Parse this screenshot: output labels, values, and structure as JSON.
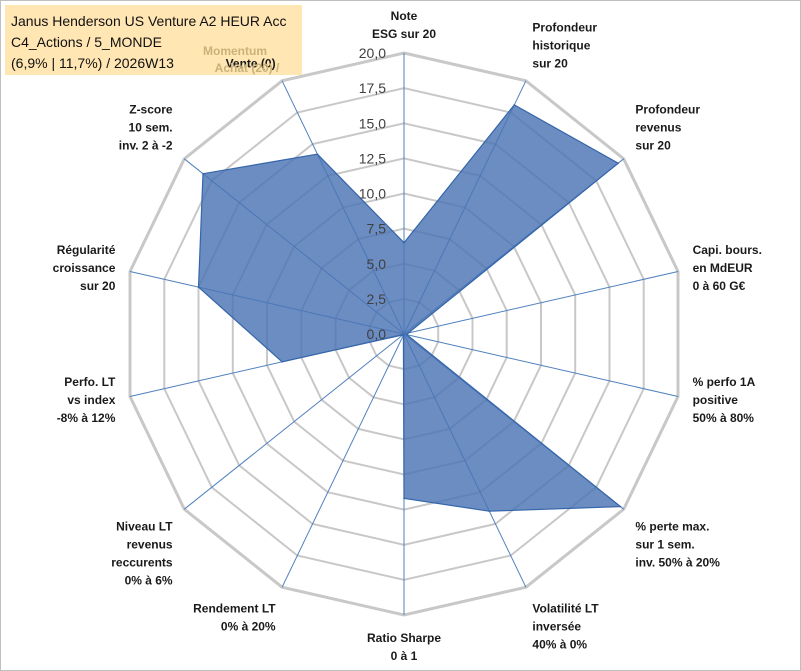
{
  "info_box": {
    "line1": "Janus Henderson US Venture A2 HEUR Acc",
    "line2": "C4_Actions / 5_MONDE",
    "line3": "(6,9% | 11,7%) / 2026W13",
    "momentum_line1": "Momentum",
    "momentum_line2": "Achat (20) /",
    "background": "#ffe6b3"
  },
  "colors": {
    "fill": "#4a74b4",
    "stroke": "#3565aa",
    "grid": "#c8c8c8",
    "spoke": "#4f81bd"
  },
  "chart_data": {
    "type": "radar",
    "rmin": 0,
    "rmax": 20,
    "tick_step": 2.5,
    "tick_labels": [
      "0,0",
      "2,5",
      "5,0",
      "7,5",
      "10,0",
      "12,5",
      "15,0",
      "17,5",
      "20,0"
    ],
    "axes": [
      {
        "lines": [
          "Note",
          "ESG sur 20"
        ],
        "value": 6.5
      },
      {
        "lines": [
          "Profondeur",
          "historique",
          "sur 20"
        ],
        "value": 18.1
      },
      {
        "lines": [
          "Profondeur",
          "revenus",
          "sur 20"
        ],
        "value": 19.5
      },
      {
        "lines": [
          "Capi. bours.",
          "en MdEUR",
          "0 à 60 G€"
        ],
        "value": 0.3
      },
      {
        "lines": [
          "% perfo 1A",
          "positive",
          "50% à 80%"
        ],
        "value": 0.2
      },
      {
        "lines": [
          "% perte max.",
          "sur 1 sem.",
          "inv. 50% à 20%"
        ],
        "value": 19.7
      },
      {
        "lines": [
          "Volatilité LT",
          "inversée",
          "40% à 0%"
        ],
        "value": 14.0
      },
      {
        "lines": [
          "Ratio Sharpe",
          "0 à 1"
        ],
        "value": 11.7
      },
      {
        "lines": [
          "Rendement LT",
          "0% à 20%"
        ],
        "value": 0.1
      },
      {
        "lines": [
          "Niveau LT",
          "revenus",
          "reccurents",
          "0% à 6%"
        ],
        "value": 0.1
      },
      {
        "lines": [
          "Perfo. LT",
          "vs index",
          "-8% à 12%"
        ],
        "value": 8.9
      },
      {
        "lines": [
          "Régularité",
          "croissance",
          "sur 20"
        ],
        "value": 15.0
      },
      {
        "lines": [
          "Z-score",
          "10 sem.",
          "inv. 2 à -2"
        ],
        "value": 18.3
      },
      {
        "lines": [
          "Momentum",
          "Achat (20) /",
          "Vente (0)"
        ],
        "value": 14.2
      }
    ]
  }
}
